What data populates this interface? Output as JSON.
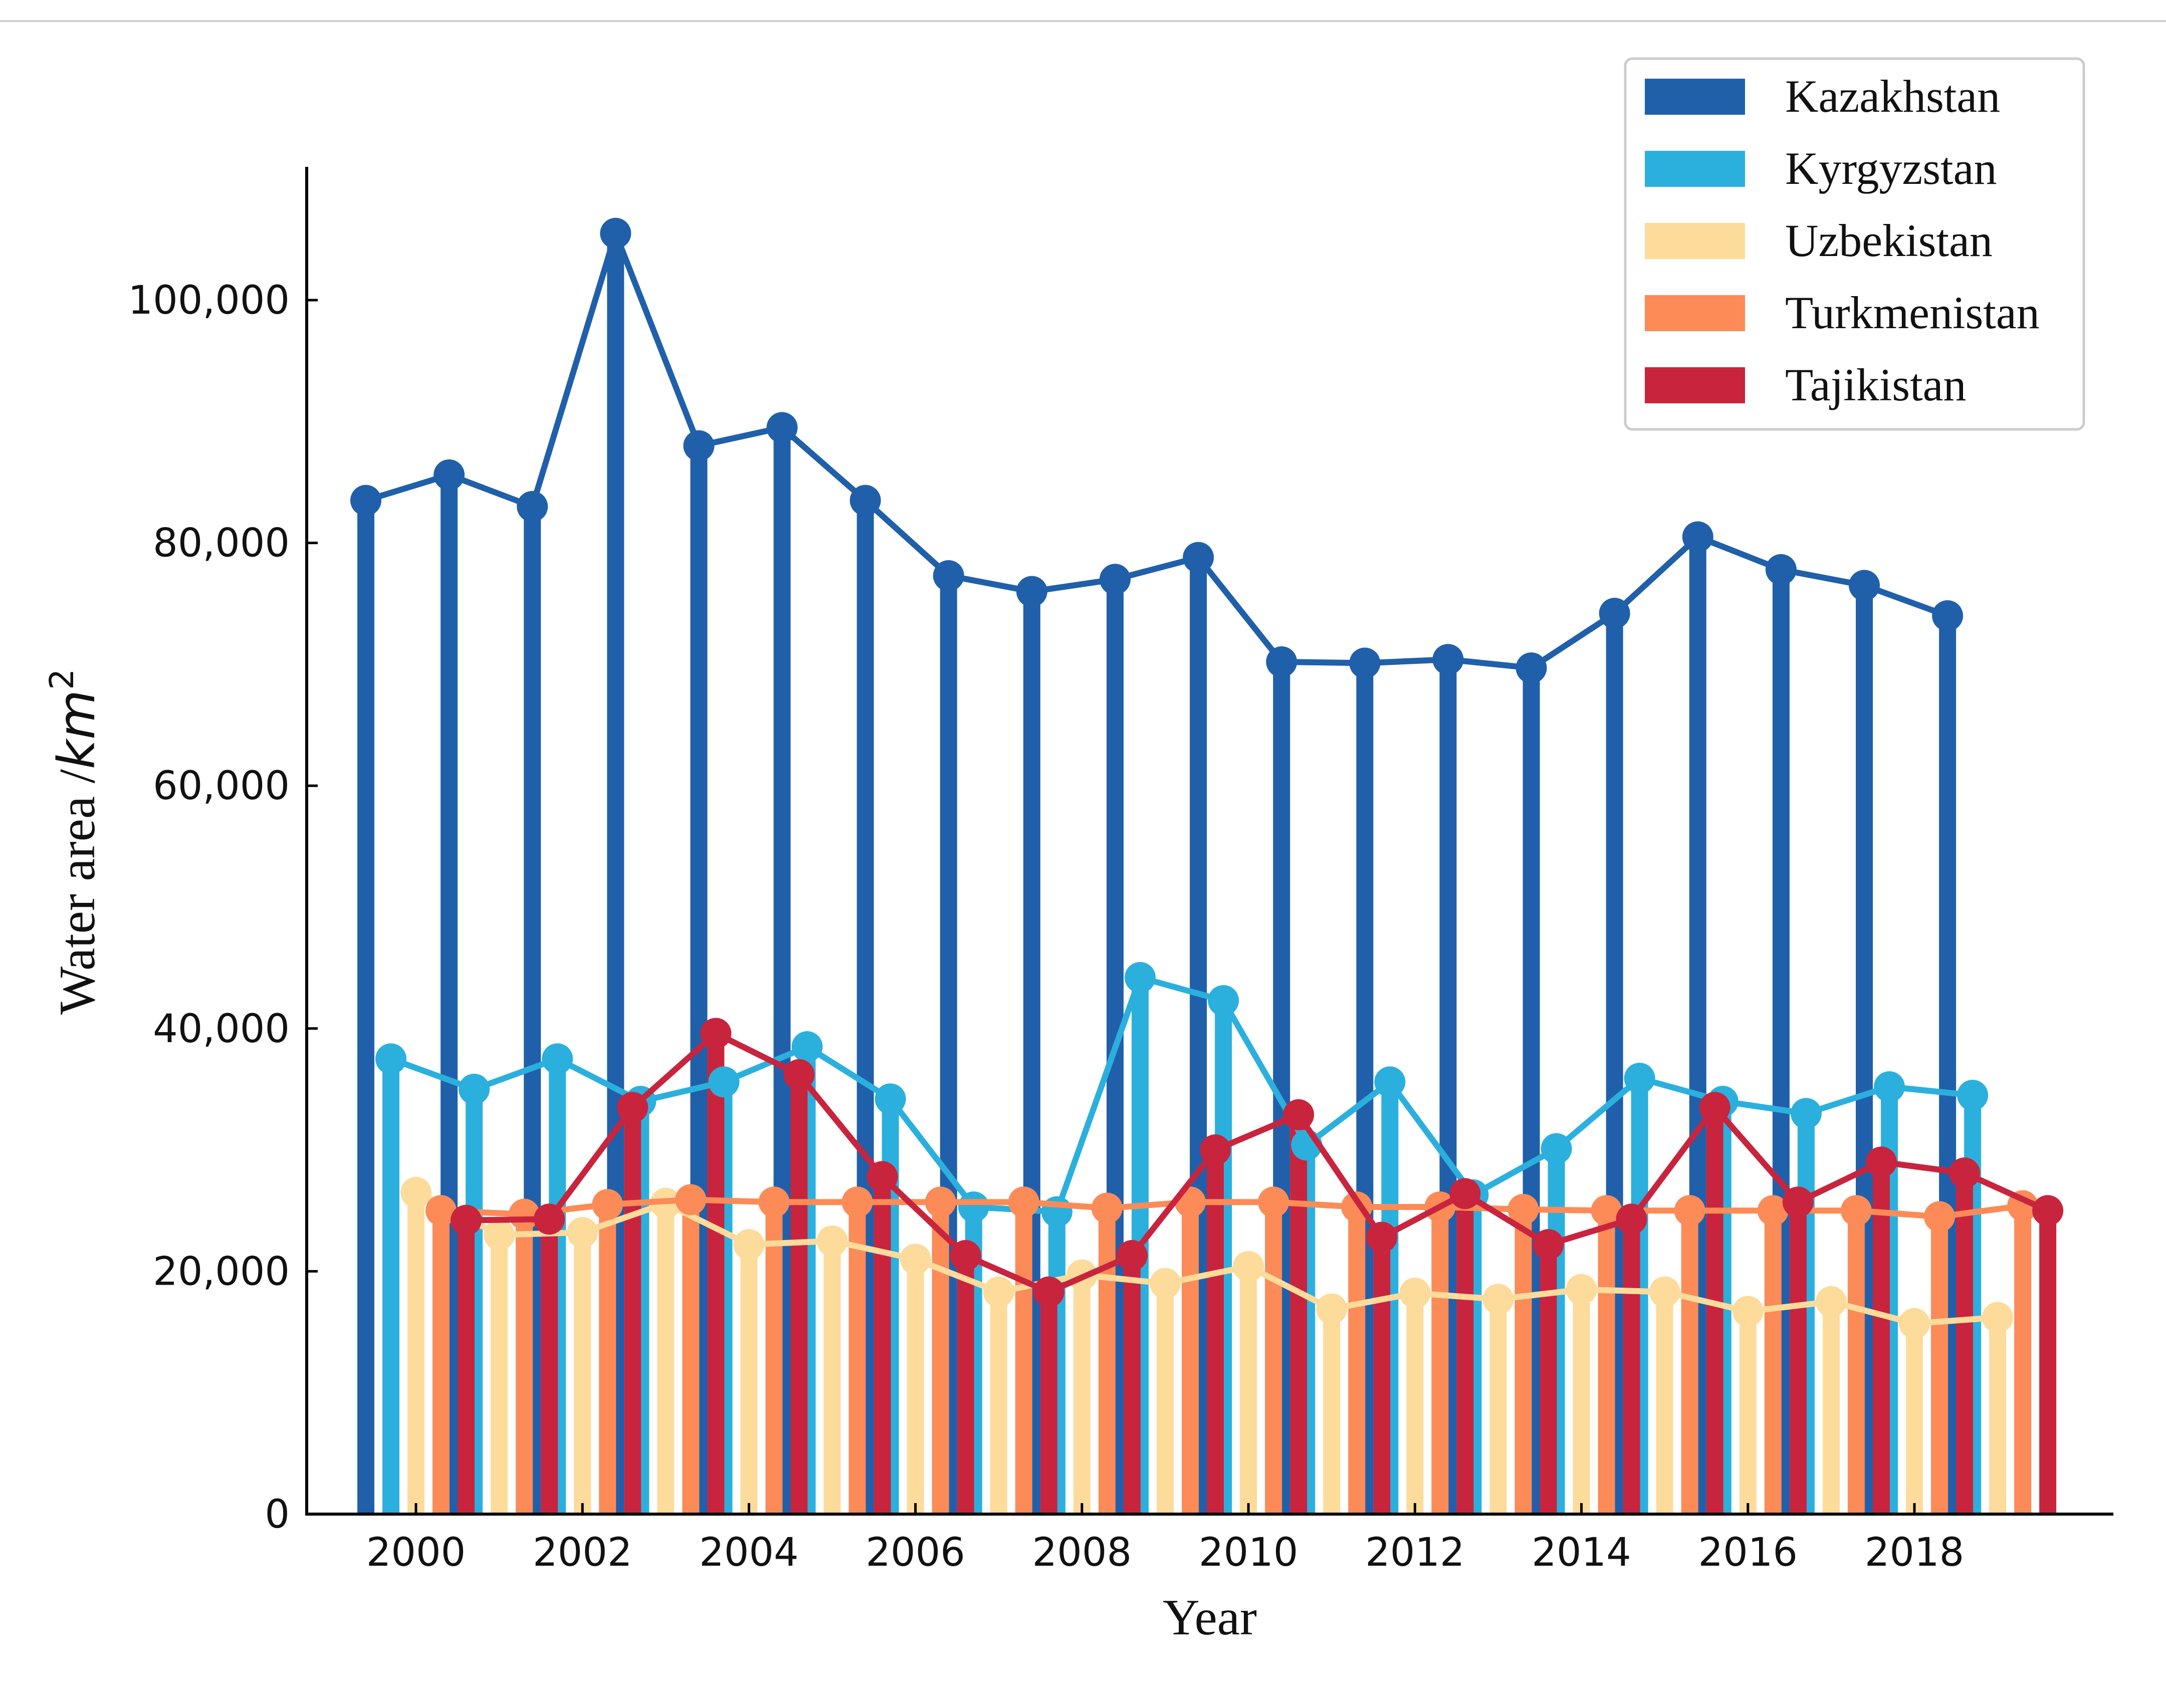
{
  "chart_data": {
    "type": "bar",
    "subtype": "grouped-bar-with-lines",
    "title": "",
    "xlabel": "Year",
    "ylabel_text": "Water area /",
    "ylabel_unit_base": "km",
    "ylabel_unit_exp": "2",
    "ylim": [
      0,
      110000
    ],
    "yticks": [
      0,
      20000,
      40000,
      60000,
      80000,
      100000
    ],
    "ytick_labels": [
      "0",
      "20,000",
      "40,000",
      "60,000",
      "80,000",
      "100,000"
    ],
    "xticks": [
      2000,
      2002,
      2004,
      2006,
      2008,
      2010,
      2012,
      2014,
      2016,
      2018
    ],
    "xtick_labels": [
      "2000",
      "2002",
      "2004",
      "2006",
      "2008",
      "2010",
      "2012",
      "2014",
      "2016",
      "2018"
    ],
    "x_range": [
      1999,
      2020.5
    ],
    "categories": [
      2000,
      2001,
      2002,
      2003,
      2004,
      2005,
      2006,
      2007,
      2008,
      2009,
      2010,
      2011,
      2012,
      2013,
      2014,
      2015,
      2016,
      2017,
      2018,
      2019
    ],
    "legend_position": "top-right",
    "series": [
      {
        "name": "Kazakhstan",
        "color": "#2060AA",
        "values": [
          83500,
          85600,
          83000,
          105500,
          88000,
          89500,
          83500,
          77300,
          76000,
          77000,
          78800,
          70200,
          70100,
          70400,
          69700,
          74200,
          80500,
          77800,
          76500,
          74000
        ]
      },
      {
        "name": "Kyrgyzstan",
        "color": "#2BB0DE",
        "values": [
          37500,
          35000,
          37500,
          34000,
          35600,
          38500,
          34200,
          25300,
          24900,
          44200,
          42300,
          30400,
          35600,
          26300,
          30100,
          35900,
          34000,
          33000,
          35200,
          34500
        ]
      },
      {
        "name": "Uzbekistan",
        "color": "#FDDB9B",
        "values": [
          26500,
          23000,
          23200,
          25600,
          22200,
          22500,
          21000,
          18300,
          19700,
          19000,
          20400,
          16900,
          18200,
          17700,
          18500,
          18300,
          16700,
          17500,
          15700,
          16200
        ]
      },
      {
        "name": "Turkmenistan",
        "color": "#FC8B57",
        "values": [
          25000,
          24700,
          25500,
          25900,
          25700,
          25700,
          25700,
          25700,
          25200,
          25700,
          25700,
          25300,
          25300,
          25100,
          25000,
          25000,
          25000,
          25000,
          24500,
          25400
        ]
      },
      {
        "name": "Tajikistan",
        "color": "#C8243E",
        "values": [
          24200,
          24300,
          33500,
          39600,
          36200,
          27800,
          21300,
          18300,
          21300,
          30000,
          32900,
          22800,
          26400,
          22200,
          24300,
          33500,
          25700,
          29000,
          28100,
          25000
        ]
      }
    ]
  }
}
